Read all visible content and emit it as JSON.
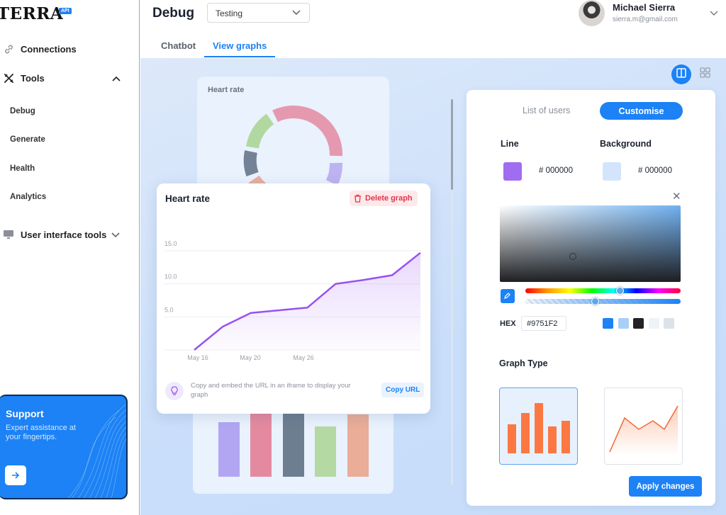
{
  "app": {
    "logo_text": "TERRA",
    "logo_badge": "API"
  },
  "sidebar": {
    "items": [
      {
        "label": "Connections",
        "icon": "link-icon"
      },
      {
        "label": "Tools",
        "icon": "tools-icon"
      }
    ],
    "sub_items": [
      {
        "label": "Debug"
      },
      {
        "label": "Generate"
      },
      {
        "label": "Health"
      },
      {
        "label": "Analytics"
      }
    ],
    "ui_tools": {
      "label": "User interface tools",
      "icon": "monitor-icon"
    },
    "support": {
      "title": "Support",
      "desc": "Expert assistance at your fingertips."
    }
  },
  "header": {
    "title": "Debug",
    "env_select": "Testing",
    "user": {
      "name": "Michael Sierra",
      "email": "sierra.m@gmail.com"
    },
    "tabs": [
      {
        "label": "Chatbot"
      },
      {
        "label": "View graphs"
      }
    ],
    "active_tab": "View graphs"
  },
  "background_graph": {
    "title": "Heart rate"
  },
  "graph_card": {
    "title": "Heart rate",
    "delete_label": "Delete graph",
    "embed_text": "Copy and embed the URL in an iframe to display your graph",
    "copy_label": "Copy URL"
  },
  "chart_data": {
    "type": "area",
    "title": "Heart rate",
    "x_ticks": [
      "May 16",
      "May 20",
      "May 26"
    ],
    "y_ticks": [
      "5.0",
      "10.0",
      "15.0"
    ],
    "ylim": [
      0,
      15
    ],
    "values": [
      0,
      3.5,
      5.6,
      6.0,
      6.4,
      10.0,
      10.6,
      11.3,
      14.7
    ],
    "line_color": "#9751F2",
    "grid": true
  },
  "panel": {
    "seg_users": "List of users",
    "seg_customise": "Customise",
    "line_label": "Line",
    "line_hex": "# 000000",
    "line_color": "#a06df0",
    "background_label": "Background",
    "background_hex": "# 000000",
    "background_color": "#d3e5fb",
    "hex_label": "HEX",
    "hex_value": "#9751F2",
    "presets": [
      "#1c82f5",
      "#a9cff8",
      "#222326",
      "#eef3fa",
      "#dbe2ea"
    ],
    "graph_type_label": "Graph Type",
    "apply_label": "Apply changes"
  }
}
